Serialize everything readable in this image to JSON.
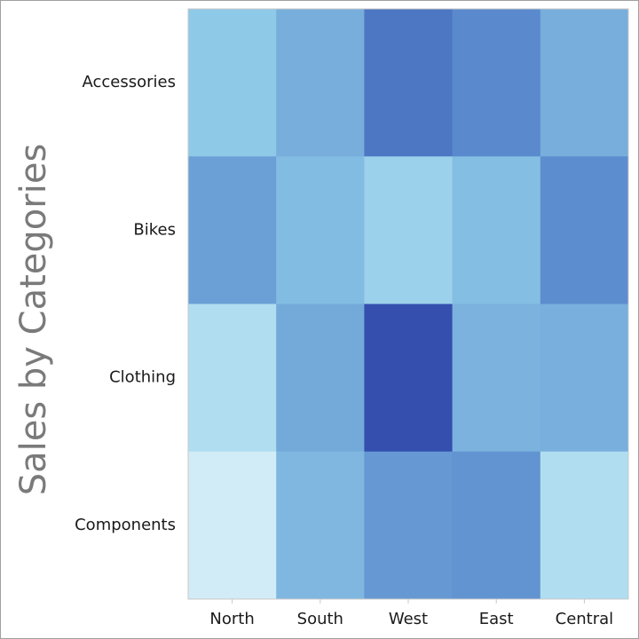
{
  "chart_data": {
    "type": "heatmap",
    "title": "Sales by Categories",
    "x": [
      "North",
      "South",
      "West",
      "East",
      "Central"
    ],
    "y": [
      "Accessories",
      "Bikes",
      "Clothing",
      "Components"
    ],
    "values": [
      [
        25,
        45,
        80,
        70,
        45
      ],
      [
        55,
        35,
        20,
        33,
        68
      ],
      [
        12,
        48,
        100,
        42,
        44
      ],
      [
        0,
        38,
        60,
        63,
        12
      ]
    ],
    "zlim": [
      0,
      100
    ],
    "colorscale": [
      [
        0,
        "#d2ecf7"
      ],
      [
        12,
        "#b0def0"
      ],
      [
        25,
        "#8fc9e8"
      ],
      [
        45,
        "#77aedc"
      ],
      [
        70,
        "#5a8acd"
      ],
      [
        100,
        "#344fae"
      ]
    ]
  }
}
